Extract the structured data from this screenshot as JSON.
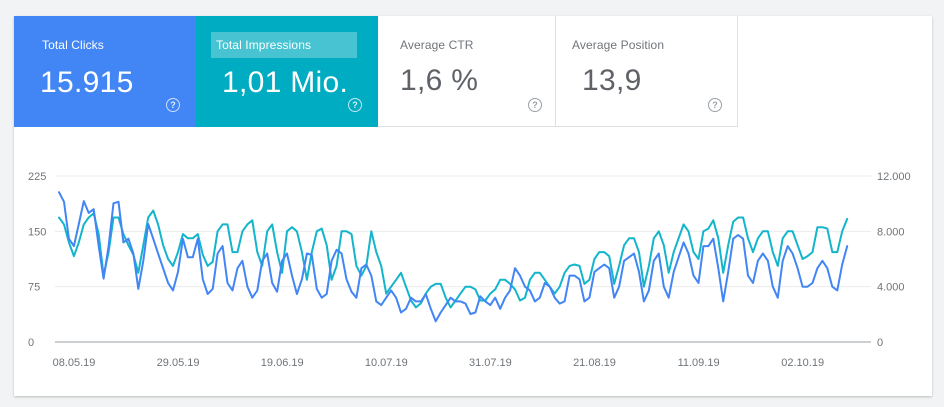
{
  "metrics": {
    "clicks": {
      "label": "Total Clicks",
      "value": "15.915",
      "color": "#4285f4"
    },
    "impressions": {
      "label": "Total Impressions",
      "value": "1,01 Mio.",
      "color": "#00acc1"
    },
    "ctr": {
      "label": "Average CTR",
      "value": "1,6 %"
    },
    "position": {
      "label": "Average Position",
      "value": "13,9"
    },
    "help_glyph": "?"
  },
  "chart_data": {
    "type": "line",
    "x_tick_labels": [
      "08.05.19",
      "29.05.19",
      "19.06.19",
      "10.07.19",
      "31.07.19",
      "21.08.19",
      "11.09.19",
      "02.10.19"
    ],
    "x_tick_days": [
      0,
      21,
      42,
      63,
      84,
      105,
      126,
      147
    ],
    "y_left": {
      "ticks": [
        "0",
        "75",
        "150",
        "225"
      ],
      "ylim": [
        0,
        225
      ]
    },
    "y_right": {
      "ticks": [
        "0",
        "4.000",
        "8.000",
        "12.000"
      ],
      "ylim": [
        0,
        12000
      ]
    },
    "grid": true,
    "series": [
      {
        "axis": "left",
        "color": "#4285f4",
        "values": [
          203,
          190,
          140,
          130,
          160,
          191,
          175,
          180,
          130,
          86,
          130,
          188,
          190,
          135,
          140,
          120,
          72,
          110,
          160,
          140,
          120,
          100,
          80,
          70,
          95,
          140,
          115,
          115,
          140,
          85,
          65,
          72,
          120,
          130,
          80,
          70,
          100,
          110,
          75,
          60,
          70,
          110,
          120,
          80,
          68,
          110,
          120,
          90,
          65,
          85,
          120,
          118,
          72,
          60,
          65,
          110,
          125,
          120,
          85,
          68,
          60,
          100,
          105,
          90,
          55,
          50,
          60,
          70,
          60,
          40,
          45,
          60,
          55,
          55,
          65,
          45,
          28,
          40,
          50,
          60,
          55,
          55,
          52,
          38,
          40,
          62,
          55,
          50,
          60,
          45,
          60,
          70,
          100,
          90,
          75,
          70,
          55,
          60,
          80,
          75,
          60,
          52,
          55,
          90,
          90,
          85,
          55,
          60,
          95,
          100,
          105,
          100,
          60,
          75,
          110,
          115,
          120,
          95,
          55,
          70,
          110,
          120,
          75,
          60,
          95,
          115,
          135,
          120,
          90,
          80,
          130,
          130,
          140,
          100,
          55,
          95,
          140,
          145,
          140,
          90,
          80,
          110,
          120,
          110,
          75,
          60,
          110,
          130,
          120,
          100,
          75,
          75,
          80,
          100,
          110,
          100,
          75,
          70,
          105,
          130
        ]
      },
      {
        "axis": "right",
        "color": "#12b5cb",
        "values": [
          9000,
          8500,
          7200,
          6200,
          7200,
          8500,
          9000,
          9300,
          7800,
          4800,
          6500,
          9000,
          9000,
          7800,
          7000,
          6300,
          5000,
          7000,
          9000,
          9500,
          8500,
          7000,
          6000,
          5500,
          6500,
          7800,
          7500,
          7500,
          7800,
          6300,
          5500,
          5800,
          8000,
          8500,
          8500,
          6500,
          6500,
          8000,
          8500,
          8800,
          6500,
          5500,
          8000,
          8500,
          6500,
          5000,
          8000,
          8300,
          8000,
          6500,
          4500,
          6500,
          8000,
          8200,
          7000,
          4500,
          5500,
          8000,
          8000,
          7800,
          5500,
          4800,
          5500,
          8000,
          6500,
          5500,
          3500,
          4000,
          4500,
          5000,
          4000,
          3000,
          2500,
          2800,
          3500,
          4000,
          4200,
          4200,
          3200,
          2500,
          3000,
          3500,
          4000,
          4000,
          3800,
          3000,
          3000,
          3500,
          3800,
          4500,
          4500,
          4200,
          3800,
          3000,
          3200,
          4500,
          5000,
          5000,
          4500,
          4000,
          3500,
          4000,
          5000,
          5500,
          5600,
          5500,
          4200,
          4500,
          6000,
          6500,
          6500,
          6200,
          4200,
          5500,
          7000,
          7500,
          7500,
          6500,
          4000,
          5500,
          7500,
          8000,
          7000,
          5000,
          6500,
          7500,
          8500,
          8000,
          6500,
          6000,
          8000,
          8200,
          8800,
          7500,
          5000,
          7000,
          8700,
          9000,
          9000,
          7500,
          6500,
          7500,
          8000,
          8000,
          6500,
          5500,
          7500,
          8000,
          8000,
          7000,
          6000,
          6200,
          6500,
          8300,
          8300,
          8200,
          6500,
          6500,
          8000,
          8900
        ]
      }
    ]
  }
}
